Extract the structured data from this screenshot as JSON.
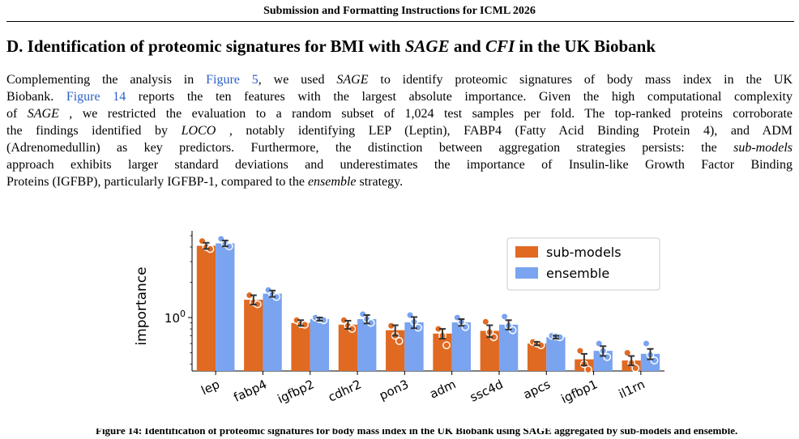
{
  "running_header": "Submission and Formatting Instructions for ICML 2026",
  "section": {
    "title_prefix": "D. Identification of proteomic signatures for BMI with ",
    "title_em1": "SAGE",
    "title_mid": " and ",
    "title_em2": "CFI",
    "title_suffix": " in the UK Biobank"
  },
  "paragraph": {
    "l1_a": "Complementing the analysis in ",
    "l1_link": "Figure 5",
    "l1_b": ", we used ",
    "l1_em": "SAGE",
    "l1_c": " to identify proteomic signatures of body mass index in the UK",
    "l2_a": "Biobank. ",
    "l2_link": "Figure 14",
    "l2_b": " reports the ten features with the largest absolute importance. Given the high computational complexity",
    "l3_a": "of ",
    "l3_em": "SAGE",
    "l3_b": " , we restricted the evaluation to a random subset of 1,024 test samples per fold. The top-ranked proteins corroborate",
    "l4_a": "the findings identified by ",
    "l4_em": "LOCO",
    "l4_b": " , notably identifying LEP (Leptin), FABP4 (Fatty Acid Binding Protein 4), and ADM",
    "l5_a": "(Adrenomedullin) as key predictors. Furthermore, the distinction between aggregation strategies persists: the ",
    "l5_em": "sub-models",
    "l6": "approach exhibits larger standard deviations and underestimates the importance of Insulin-like Growth Factor Binding",
    "l7_a": "Proteins (IGFBP), particularly IGFBP-1, compared to the ",
    "l7_em": "ensemble",
    "l7_b": " strategy."
  },
  "caption_fragment": "Figure 14: Identification of proteomic signatures for body mass index in the UK Biobank using SAGE aggregated by sub-models and ensemble.",
  "chart_data": {
    "type": "bar",
    "yscale": "log",
    "ylabel": "importance",
    "ylim": [
      0.35,
      5.5
    ],
    "yticks": [
      {
        "value": 1,
        "base": "10",
        "exp": "0"
      }
    ],
    "categories": [
      "lep",
      "fabp4",
      "igfbp2",
      "cdhr2",
      "pon3",
      "adm",
      "ssc4d",
      "apcs",
      "igfbp1",
      "il1rn"
    ],
    "legend_position": "upper-right",
    "series": [
      {
        "name": "sub-models",
        "color": "#e06a22",
        "values": [
          4.1,
          1.42,
          0.9,
          0.87,
          0.78,
          0.73,
          0.77,
          0.6,
          0.44,
          0.43
        ],
        "err": [
          0.25,
          0.13,
          0.05,
          0.07,
          0.08,
          0.07,
          0.09,
          0.02,
          0.05,
          0.04
        ],
        "points": [
          [
            4.5,
            4.0,
            3.85
          ],
          [
            1.55,
            1.35,
            1.3
          ],
          [
            0.95,
            0.88,
            0.87
          ],
          [
            0.95,
            0.85,
            0.8
          ],
          [
            0.85,
            0.7,
            0.63
          ],
          [
            0.8,
            0.7,
            0.58
          ],
          [
            0.92,
            0.75,
            0.68
          ],
          [
            0.62,
            0.6,
            0.58
          ],
          [
            0.52,
            0.4,
            0.36
          ],
          [
            0.5,
            0.41,
            0.37
          ]
        ]
      },
      {
        "name": "ensemble",
        "color": "#7aa4f0",
        "values": [
          4.3,
          1.6,
          0.97,
          0.97,
          0.91,
          0.91,
          0.87,
          0.68,
          0.52,
          0.49
        ],
        "err": [
          0.25,
          0.1,
          0.03,
          0.08,
          0.1,
          0.06,
          0.08,
          0.02,
          0.05,
          0.05
        ],
        "points": [
          [
            4.7,
            4.25,
            4.05
          ],
          [
            1.72,
            1.58,
            1.5
          ],
          [
            1.0,
            0.97,
            0.95
          ],
          [
            1.07,
            0.97,
            0.9
          ],
          [
            1.05,
            0.92,
            0.82
          ],
          [
            1.0,
            0.92,
            0.83
          ],
          [
            1.02,
            0.85,
            0.78
          ],
          [
            0.7,
            0.69,
            0.68
          ],
          [
            0.6,
            0.52,
            0.46
          ],
          [
            0.6,
            0.48,
            0.43
          ]
        ]
      }
    ]
  }
}
